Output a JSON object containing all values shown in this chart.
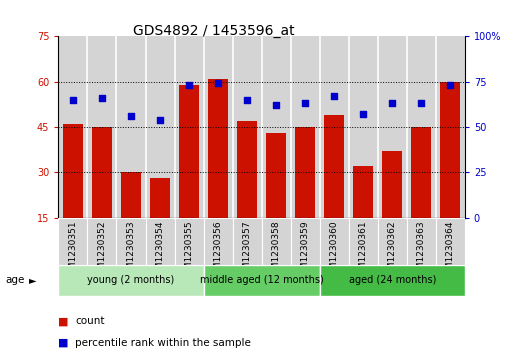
{
  "title": "GDS4892 / 1453596_at",
  "samples": [
    "GSM1230351",
    "GSM1230352",
    "GSM1230353",
    "GSM1230354",
    "GSM1230355",
    "GSM1230356",
    "GSM1230357",
    "GSM1230358",
    "GSM1230359",
    "GSM1230360",
    "GSM1230361",
    "GSM1230362",
    "GSM1230363",
    "GSM1230364"
  ],
  "counts": [
    46,
    45,
    30,
    28,
    59,
    61,
    47,
    43,
    45,
    49,
    32,
    37,
    45,
    60
  ],
  "percentiles": [
    65,
    66,
    56,
    54,
    73,
    74,
    65,
    62,
    63,
    67,
    57,
    63,
    63,
    73
  ],
  "ylim_left": [
    15,
    75
  ],
  "ylim_right": [
    0,
    100
  ],
  "yticks_left": [
    15,
    30,
    45,
    60,
    75
  ],
  "yticks_right": [
    0,
    25,
    50,
    75,
    100
  ],
  "bar_color": "#cc1100",
  "dot_color": "#0000cc",
  "bar_bg_color": "#d4d4d4",
  "group_colors": [
    "#b8e8b8",
    "#66cc66",
    "#44bb44"
  ],
  "group_data": [
    {
      "label": "young (2 months)",
      "start": 0,
      "end": 5
    },
    {
      "label": "middle aged (12 months)",
      "start": 5,
      "end": 9
    },
    {
      "label": "aged (24 months)",
      "start": 9,
      "end": 14
    }
  ],
  "legend_count_label": "count",
  "legend_pct_label": "percentile rank within the sample",
  "age_label": "age",
  "title_fontsize": 10,
  "tick_fontsize": 7,
  "label_fontsize": 7.5
}
